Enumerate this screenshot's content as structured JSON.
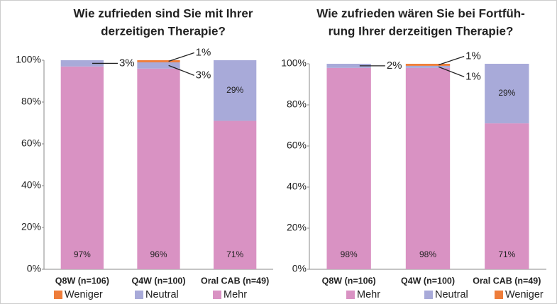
{
  "chart_data": [
    {
      "type": "bar",
      "stacked": true,
      "title": [
        "Wie zufrieden sind Sie mit Ihrer",
        "derzeitigen Therapie?"
      ],
      "categories": [
        "Q8W (n=106)",
        "Q4W (n=100)",
        "Oral CAB (n=49)"
      ],
      "series": [
        {
          "name": "Mehr",
          "color": "#d992c3",
          "values": [
            97,
            96,
            71
          ],
          "value_labels": [
            "97%",
            "96%",
            "71%"
          ]
        },
        {
          "name": "Neutral",
          "color": "#a8aad9",
          "values": [
            3,
            3,
            29
          ],
          "value_labels": [
            "3%",
            "3%",
            "29%"
          ]
        },
        {
          "name": "Weniger",
          "color": "#ee7d3a",
          "values": [
            0,
            1,
            0
          ],
          "value_labels": [
            null,
            "1%",
            null
          ]
        }
      ],
      "legend_reversed": true,
      "ylim": [
        0,
        100
      ],
      "yticks": [
        {
          "value": 0,
          "label": "0%"
        },
        {
          "value": 20,
          "label": "20%"
        },
        {
          "value": 40,
          "label": "40%"
        },
        {
          "value": 60,
          "label": "60%"
        },
        {
          "value": 80,
          "label": "80%"
        },
        {
          "value": 100,
          "label": "100%"
        }
      ]
    },
    {
      "type": "bar",
      "stacked": true,
      "title": [
        "Wie zufrieden wären Sie bei Fortfüh-",
        "rung Ihrer derzeitigen Therapie?"
      ],
      "categories": [
        "Q8W (n=106)",
        "Q4W (n=100)",
        "Oral CAB (n=49)"
      ],
      "series": [
        {
          "name": "Mehr",
          "color": "#d992c3",
          "values": [
            98,
            98,
            71
          ],
          "value_labels": [
            "98%",
            "98%",
            "71%"
          ]
        },
        {
          "name": "Neutral",
          "color": "#a8aad9",
          "values": [
            2,
            1,
            29
          ],
          "value_labels": [
            "2%",
            "1%",
            "29%"
          ]
        },
        {
          "name": "Weniger",
          "color": "#ee7d3a",
          "values": [
            0,
            1,
            0
          ],
          "value_labels": [
            null,
            "1%",
            null
          ]
        }
      ],
      "legend_reversed": false,
      "ylim": [
        0,
        100
      ],
      "yticks": [
        {
          "value": 0,
          "label": "0%"
        },
        {
          "value": 20,
          "label": "20%"
        },
        {
          "value": 40,
          "label": "40%"
        },
        {
          "value": 60,
          "label": "60%"
        },
        {
          "value": 80,
          "label": "80%"
        },
        {
          "value": 100,
          "label": "100%"
        }
      ]
    }
  ]
}
